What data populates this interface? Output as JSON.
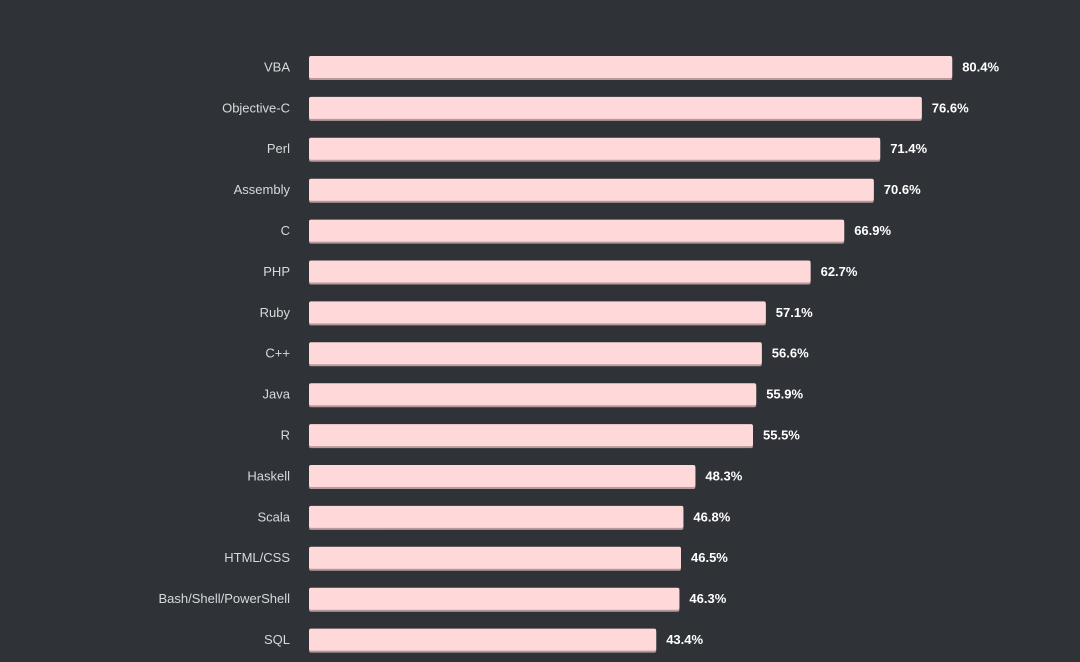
{
  "chart_data": {
    "type": "bar",
    "orientation": "horizontal",
    "categories": [
      "VBA",
      "Objective-C",
      "Perl",
      "Assembly",
      "C",
      "PHP",
      "Ruby",
      "C++",
      "Java",
      "R",
      "Haskell",
      "Scala",
      "HTML/CSS",
      "Bash/Shell/PowerShell",
      "SQL"
    ],
    "values": [
      80.4,
      76.6,
      71.4,
      70.6,
      66.9,
      62.7,
      57.1,
      56.6,
      55.9,
      55.5,
      48.3,
      46.8,
      46.5,
      46.3,
      43.4
    ],
    "value_labels": [
      "80.4%",
      "76.6%",
      "71.4%",
      "70.6%",
      "66.9%",
      "62.7%",
      "57.1%",
      "56.6%",
      "55.9%",
      "55.5%",
      "48.3%",
      "46.8%",
      "46.5%",
      "46.3%",
      "43.4%"
    ],
    "unit": "%",
    "xlim": [
      0,
      100
    ],
    "title": "",
    "xlabel": "",
    "ylabel": "",
    "grid": false,
    "colors": {
      "background": "#2f3237",
      "bar": "#ffd9d9",
      "bar_shadow": "#b89a9e",
      "category_text": "#d7d9dc",
      "value_text": "#ffffff"
    }
  }
}
